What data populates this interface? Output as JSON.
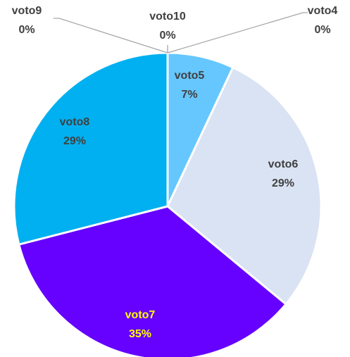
{
  "chart_data": {
    "type": "pie",
    "title": "",
    "slices": [
      {
        "name": "voto4",
        "value": 0,
        "label_pct": "0%",
        "color": "#c8c8c8",
        "label_color": "#404040"
      },
      {
        "name": "voto5",
        "value": 7,
        "label_pct": "7%",
        "color": "#66c7ff",
        "label_color": "#404040"
      },
      {
        "name": "voto6",
        "value": 29,
        "label_pct": "29%",
        "color": "#dae3f3",
        "label_color": "#404040"
      },
      {
        "name": "voto7",
        "value": 35,
        "label_pct": "35%",
        "color": "#6600ff",
        "label_color": "#ffff00"
      },
      {
        "name": "voto8",
        "value": 29,
        "label_pct": "29%",
        "color": "#00b0f0",
        "label_color": "#404040"
      },
      {
        "name": "voto9",
        "value": 0,
        "label_pct": "0%",
        "color": "#c8c8c8",
        "label_color": "#404040"
      },
      {
        "name": "voto10",
        "value": 0,
        "label_pct": "0%",
        "color": "#c8c8c8",
        "label_color": "#404040"
      }
    ],
    "legend": "none"
  }
}
